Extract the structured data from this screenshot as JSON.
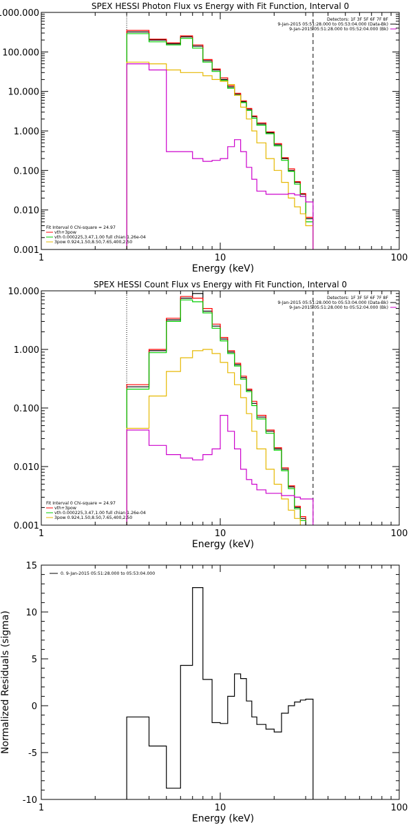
{
  "chart_data": [
    {
      "type": "line",
      "title": "SPEX HESSI Photon Flux vs Energy with Fit Function, Interval 0",
      "xlabel": "Energy (keV)",
      "ylabel": "",
      "xscale": "log",
      "yscale": "log",
      "xlim": [
        1,
        100
      ],
      "ylim": [
        0.001,
        1000
      ],
      "xticks": [
        "1",
        "10",
        "100"
      ],
      "yticks": [
        "1000.000",
        "100.000",
        "10.000",
        "1.000",
        "0.100",
        "0.010",
        "0.001"
      ],
      "vlines": [
        {
          "x": 3,
          "style": "dotted"
        },
        {
          "x": 33,
          "style": "dashed"
        }
      ],
      "info_text": [
        "Detectors: 1F 3F 5F 6F 7F 8F",
        "9-Jan-2015 05:51:28.000 to 05:53:04.000 (Data-Bk)",
        "9-Jan-2015 05:51:28.000 to 05:52:04.000 (Bk)"
      ],
      "info_colors": [
        "#000000",
        "#000000",
        "#cc00cc"
      ],
      "fit_text": [
        "Fit Interval 0   Chi-square = 24.97",
        "vth+3pow",
        "vth 0.000225,3.47,1.00   full chian 1.26e-04",
        "3pow 0.924,1.50,8.50,7.65,400,2.50"
      ],
      "fit_colors": [
        "#000000",
        "#ff0000",
        "#00cc00",
        "#e6b800"
      ],
      "edges": [
        3,
        4,
        5,
        6,
        7,
        8,
        9,
        10,
        11,
        12,
        13,
        14,
        15,
        16,
        18,
        20,
        22,
        24,
        26,
        28,
        30,
        33,
        36
      ],
      "series": [
        {
          "color": "#000000",
          "values": [
            320,
            200,
            160,
            240,
            140,
            60,
            35,
            20,
            13,
            8.5,
            5.5,
            3.5,
            2.3,
            1.5,
            0.9,
            0.45,
            0.2,
            0.1,
            0.05,
            0.025,
            0.006,
            0.0008
          ]
        },
        {
          "color": "#ff0000",
          "values": [
            350,
            210,
            170,
            255,
            150,
            64,
            37,
            22,
            14,
            9,
            5.8,
            3.7,
            2.4,
            1.6,
            0.95,
            0.48,
            0.21,
            0.11,
            0.052,
            0.026,
            0.0065,
            0.0009
          ]
        },
        {
          "color": "#00cc00",
          "values": [
            290,
            180,
            150,
            220,
            125,
            55,
            32,
            19,
            12,
            8,
            5.2,
            3.3,
            2.1,
            1.4,
            0.85,
            0.42,
            0.18,
            0.095,
            0.045,
            0.022,
            0.005,
            0.0007
          ]
        },
        {
          "color": "#e6b800",
          "values": [
            55,
            50,
            35,
            30,
            30,
            25,
            20,
            18,
            15,
            8,
            4,
            2,
            1,
            0.5,
            0.2,
            0.1,
            0.05,
            0.02,
            0.012,
            0.008,
            0.004,
            0.0009
          ]
        },
        {
          "color": "#cc00cc",
          "values": [
            50,
            35,
            0.3,
            0.3,
            0.2,
            0.17,
            0.18,
            0.2,
            0.4,
            0.6,
            0.3,
            0.12,
            0.06,
            0.03,
            0.025,
            0.025,
            0.025,
            0.026,
            0.024,
            0.022,
            0.016,
            0.0008
          ]
        }
      ]
    },
    {
      "type": "line",
      "title": "SPEX HESSI Count Flux vs Energy with Fit Function, Interval 0",
      "xlabel": "Energy (keV)",
      "ylabel": "",
      "xscale": "log",
      "yscale": "log",
      "xlim": [
        1,
        100
      ],
      "ylim": [
        0.001,
        10
      ],
      "xticks": [
        "1",
        "10",
        "100"
      ],
      "yticks": [
        "10.000",
        "1.000",
        "0.100",
        "0.010",
        "0.001"
      ],
      "vlines": [
        {
          "x": 3,
          "style": "dotted"
        },
        {
          "x": 33,
          "style": "dashed"
        }
      ],
      "info_text": [
        "Detectors: 1F 3F 5F 6F 7F 8F",
        "9-Jan-2015 05:51:28.000 to 05:53:04.000 (Data-Bk)",
        "9-Jan-2015 05:51:28.000 to 05:52:04.000 (Bk)"
      ],
      "info_colors": [
        "#000000",
        "#000000",
        "#cc00cc"
      ],
      "fit_text": [
        "Fit Interval 0   Chi-square = 24.97",
        "vth+3pow",
        "vth 0.000225,3.47,1.00   full chian 1.26e-04",
        "3pow 0.924,1.50,8.50,7.65,400,2.50"
      ],
      "fit_colors": [
        "#000000",
        "#ff0000",
        "#00cc00",
        "#e6b800"
      ],
      "edges": [
        3,
        4,
        5,
        6,
        7,
        8,
        9,
        10,
        11,
        12,
        13,
        14,
        15,
        16,
        18,
        20,
        22,
        24,
        26,
        28,
        30,
        33,
        36
      ],
      "series": [
        {
          "color": "#000000",
          "values": [
            0.23,
            0.95,
            3.2,
            7.5,
            9,
            4.5,
            2.5,
            1.5,
            0.9,
            0.55,
            0.33,
            0.2,
            0.12,
            0.07,
            0.04,
            0.02,
            0.009,
            0.0045,
            0.002,
            0.0013,
            0.0009,
            0.0008
          ]
        },
        {
          "color": "#ff0000",
          "values": [
            0.25,
            1.0,
            3.4,
            8,
            7.5,
            5,
            2.7,
            1.6,
            0.95,
            0.58,
            0.35,
            0.21,
            0.13,
            0.075,
            0.042,
            0.021,
            0.0095,
            0.0047,
            0.0021,
            0.0014,
            0.0009,
            0.0008
          ]
        },
        {
          "color": "#00cc00",
          "values": [
            0.21,
            0.88,
            3.0,
            7.0,
            6.5,
            4.2,
            2.3,
            1.4,
            0.85,
            0.52,
            0.31,
            0.19,
            0.11,
            0.065,
            0.037,
            0.019,
            0.0085,
            0.0042,
            0.0019,
            0.0012,
            0.0008,
            0.0007
          ]
        },
        {
          "color": "#e6b800",
          "values": [
            0.045,
            0.16,
            0.42,
            0.72,
            0.95,
            1.0,
            0.85,
            0.6,
            0.4,
            0.25,
            0.15,
            0.08,
            0.04,
            0.02,
            0.009,
            0.005,
            0.0028,
            0.0018,
            0.0013,
            0.0009,
            0.0008,
            0.0007
          ]
        },
        {
          "color": "#cc00cc",
          "values": [
            0.042,
            0.023,
            0.016,
            0.014,
            0.013,
            0.016,
            0.02,
            0.075,
            0.04,
            0.02,
            0.009,
            0.006,
            0.005,
            0.004,
            0.0035,
            0.0035,
            0.0032,
            0.0032,
            0.003,
            0.0028,
            0.0028,
            0.0008
          ]
        }
      ]
    },
    {
      "type": "line",
      "title": "",
      "xlabel": "Energy (keV)",
      "ylabel": "Normalized Residuals (sigma)",
      "xscale": "log",
      "yscale": "linear",
      "xlim": [
        1,
        100
      ],
      "ylim": [
        -10,
        15
      ],
      "xticks": [
        "1",
        "10",
        "100"
      ],
      "yticks": [
        "15",
        "10",
        "5",
        "0",
        "-5",
        "-10"
      ],
      "legend": "0. 9-Jan-2015 05:51:28.000 to 05:53:04.000",
      "edges": [
        3,
        4,
        5,
        6,
        7,
        8,
        9,
        10,
        11,
        12,
        13,
        14,
        15,
        16,
        18,
        20,
        22,
        24,
        26,
        28,
        30,
        33
      ],
      "series": [
        {
          "color": "#000000",
          "values": [
            -1.2,
            -4.3,
            -8.8,
            4.3,
            12.6,
            2.8,
            -1.8,
            -1.9,
            1.0,
            3.4,
            2.9,
            0.5,
            -1.2,
            -2.0,
            -2.5,
            -2.8,
            -0.8,
            0.0,
            0.4,
            0.6,
            0.7
          ]
        }
      ]
    }
  ]
}
